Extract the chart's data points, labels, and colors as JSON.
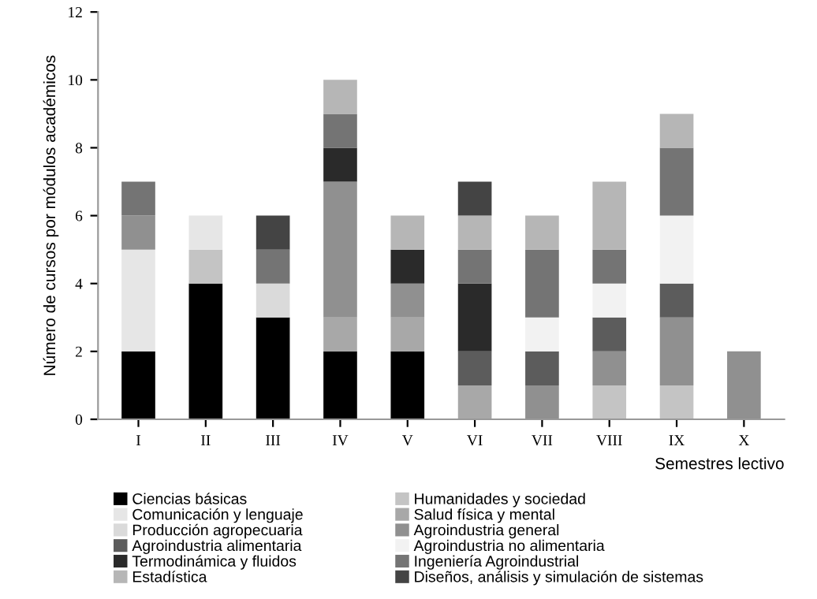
{
  "chart_data": {
    "type": "bar",
    "stacked": true,
    "xlabel": "Semestres lectivo",
    "ylabel": "Número de cursos por módulos académicos",
    "categories": [
      "I",
      "II",
      "III",
      "IV",
      "V",
      "VI",
      "VII",
      "VIII",
      "IX",
      "X"
    ],
    "series": [
      {
        "name": "Ciencias básicas",
        "color": "#000000",
        "values": [
          2,
          4,
          3,
          2,
          2,
          0,
          0,
          0,
          0,
          0
        ]
      },
      {
        "name": "Humanidades y sociedad",
        "color": "#c4c4c4",
        "values": [
          0,
          1,
          0,
          0,
          0,
          0,
          0,
          1,
          1,
          0
        ]
      },
      {
        "name": "Comunicación y lenguaje",
        "color": "#e6e6e6",
        "values": [
          3,
          1,
          0,
          0,
          0,
          0,
          0,
          0,
          0,
          0
        ]
      },
      {
        "name": "Salud física y mental",
        "color": "#a8a8a8",
        "values": [
          0,
          0,
          0,
          1,
          1,
          1,
          0,
          0,
          0,
          0
        ]
      },
      {
        "name": "Producción agropecuaria",
        "color": "#dadada",
        "values": [
          0,
          0,
          1,
          0,
          0,
          0,
          0,
          0,
          0,
          0
        ]
      },
      {
        "name": "Agroindustria general",
        "color": "#909090",
        "values": [
          1,
          0,
          0,
          4,
          1,
          0,
          1,
          1,
          2,
          2
        ]
      },
      {
        "name": "Agroindustria alimentaria",
        "color": "#5c5c5c",
        "values": [
          0,
          0,
          0,
          0,
          0,
          1,
          1,
          1,
          1,
          0
        ]
      },
      {
        "name": "Agroindustria no alimentaria",
        "color": "#f2f2f2",
        "values": [
          0,
          0,
          0,
          0,
          0,
          0,
          1,
          1,
          2,
          0
        ]
      },
      {
        "name": "Termodinámica y fluidos",
        "color": "#2a2a2a",
        "values": [
          0,
          0,
          0,
          1,
          1,
          2,
          0,
          0,
          0,
          0
        ]
      },
      {
        "name": "Ingeniería Agroindustrial",
        "color": "#747474",
        "values": [
          1,
          0,
          1,
          1,
          0,
          1,
          2,
          1,
          2,
          0
        ]
      },
      {
        "name": "Estadística",
        "color": "#b6b6b6",
        "values": [
          0,
          0,
          0,
          1,
          1,
          1,
          1,
          2,
          1,
          0
        ]
      },
      {
        "name": "Diseños, análisis y simulación de sistemas",
        "color": "#444444",
        "values": [
          0,
          0,
          1,
          0,
          0,
          1,
          0,
          0,
          0,
          0
        ]
      }
    ],
    "ylim": [
      0,
      12
    ],
    "yticks": [
      0,
      2,
      4,
      6,
      8,
      10,
      12
    ],
    "grid": false,
    "legend": "bottom"
  }
}
